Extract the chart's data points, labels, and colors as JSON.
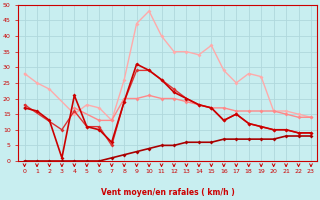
{
  "xlabel": "Vent moyen/en rafales ( km/h )",
  "xlim": [
    -0.5,
    23.5
  ],
  "ylim": [
    0,
    50
  ],
  "yticks": [
    0,
    5,
    10,
    15,
    20,
    25,
    30,
    35,
    40,
    45,
    50
  ],
  "xticks": [
    0,
    1,
    2,
    3,
    4,
    5,
    6,
    7,
    8,
    9,
    10,
    11,
    12,
    13,
    14,
    15,
    16,
    17,
    18,
    19,
    20,
    21,
    22,
    23
  ],
  "bg_color": "#c8eef0",
  "grid_color": "#b0d8dc",
  "lines": [
    {
      "color": "#ffaaaa",
      "lw": 1.0,
      "marker": "D",
      "ms": 2.0,
      "y": [
        28,
        25,
        23,
        null,
        15,
        18,
        17,
        13,
        26,
        44,
        48,
        40,
        35,
        35,
        34,
        37,
        29,
        25,
        28,
        27,
        16,
        16,
        15,
        14
      ]
    },
    {
      "color": "#ff8888",
      "lw": 1.0,
      "marker": "D",
      "ms": 2.0,
      "y": [
        null,
        null,
        null,
        null,
        17,
        null,
        13,
        13,
        20,
        20,
        21,
        20,
        20,
        19,
        18,
        17,
        17,
        16,
        16,
        16,
        16,
        15,
        14,
        14
      ]
    },
    {
      "color": "#dd3333",
      "lw": 1.0,
      "marker": "D",
      "ms": 2.0,
      "y": [
        18,
        null,
        null,
        10,
        16,
        11,
        11,
        5,
        19,
        29,
        29,
        26,
        23,
        20,
        18,
        17,
        13,
        15,
        12,
        11,
        10,
        10,
        9,
        9
      ]
    },
    {
      "color": "#cc0000",
      "lw": 1.2,
      "marker": "D",
      "ms": 2.0,
      "y": [
        17,
        16,
        13,
        1,
        21,
        11,
        10,
        6,
        19,
        31,
        29,
        26,
        22,
        20,
        18,
        17,
        13,
        15,
        12,
        11,
        10,
        10,
        9,
        9
      ]
    },
    {
      "color": "#aa0000",
      "lw": 1.2,
      "marker": "D",
      "ms": 2.0,
      "y": [
        0,
        0,
        0,
        0,
        0,
        0,
        0,
        1,
        2,
        3,
        4,
        5,
        5,
        6,
        6,
        6,
        7,
        7,
        7,
        7,
        7,
        8,
        8,
        8
      ]
    }
  ],
  "arrow_color": "#cc0000",
  "tick_color": "#cc0000",
  "label_color": "#cc0000",
  "spine_color": "#cc0000"
}
